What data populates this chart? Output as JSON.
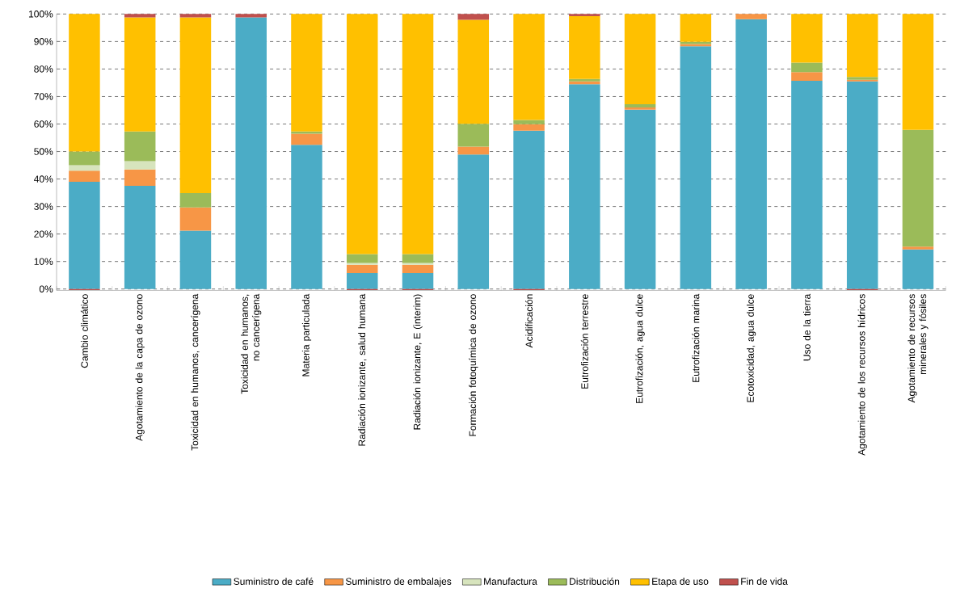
{
  "chart_data": {
    "type": "bar",
    "stacked": true,
    "categories": [
      "Cambio climático",
      "Agotamiento de la capa de ozono",
      "Toxicidad en humanos, cancerígena",
      "Toxicidad en humanos, no cancerígena",
      "Materia particulada",
      "Radiación ionizante, salud humana",
      "Radiación ionizante, E (interim)",
      "Formación fotoquímica de ozono",
      "Acidificación",
      "Eutrofización terrestre",
      "Eutrofización, agua dulce",
      "Eutrofización marina",
      "Ecotoxicidad, agua dulce",
      "Uso de la tierra",
      "Agotamiento de los recursos hídricos",
      "Agotamiento de recursos minerales y fósiles"
    ],
    "series": [
      {
        "name": "Suministro de café",
        "color": "#4bacc6",
        "values": [
          39,
          37.5,
          21.2,
          98.8,
          52.4,
          5.8,
          5.8,
          48.9,
          57.6,
          74.5,
          65.2,
          88.3,
          98.1,
          75.7,
          75.5,
          14.4
        ]
      },
      {
        "name": "Suministro de embalajes",
        "color": "#f79646",
        "values": [
          4,
          6,
          8.5,
          0,
          4.1,
          3,
          3,
          2.9,
          2.3,
          1,
          0.8,
          0.8,
          1.9,
          3.2,
          0.6,
          1
        ]
      },
      {
        "name": "Manufactura",
        "color": "#d7e4bd",
        "values": [
          2,
          3,
          0,
          0,
          0,
          0.7,
          0.7,
          0,
          0,
          0,
          0,
          0,
          0,
          0,
          0,
          0
        ]
      },
      {
        "name": "Distribución",
        "color": "#9bbb59",
        "values": [
          5,
          10.8,
          5.2,
          0,
          0.8,
          3.2,
          3.2,
          8.3,
          1.6,
          0.9,
          1.2,
          0.8,
          0,
          3.4,
          1,
          42.5
        ]
      },
      {
        "name": "Etapa de uso",
        "color": "#ffc000",
        "values": [
          50,
          41.5,
          63.9,
          0,
          42.7,
          87.3,
          87.3,
          37.8,
          38.5,
          22.8,
          32.8,
          10.1,
          0,
          17.7,
          22.9,
          42.1
        ]
      },
      {
        "name": "Fin de vida",
        "color": "#c0504d",
        "values": [
          -0.4,
          1.2,
          1.2,
          1.2,
          0,
          -0.4,
          -0.4,
          2.1,
          -0.4,
          0.8,
          0,
          0,
          0,
          0,
          -0.4,
          0
        ]
      }
    ],
    "ylim": [
      -0.5,
      100
    ],
    "yticks": [
      {
        "value": 0,
        "label": "0%"
      },
      {
        "value": 10,
        "label": "10%"
      },
      {
        "value": 20,
        "label": "20%"
      },
      {
        "value": 30,
        "label": "30%"
      },
      {
        "value": 40,
        "label": "40%"
      },
      {
        "value": 50,
        "label": "50%"
      },
      {
        "value": 60,
        "label": "60%"
      },
      {
        "value": 70,
        "label": "70%"
      },
      {
        "value": 80,
        "label": "80%"
      },
      {
        "value": 90,
        "label": "90%"
      },
      {
        "value": 100,
        "label": "100%"
      }
    ],
    "grid": "y",
    "legend": "bottom"
  }
}
